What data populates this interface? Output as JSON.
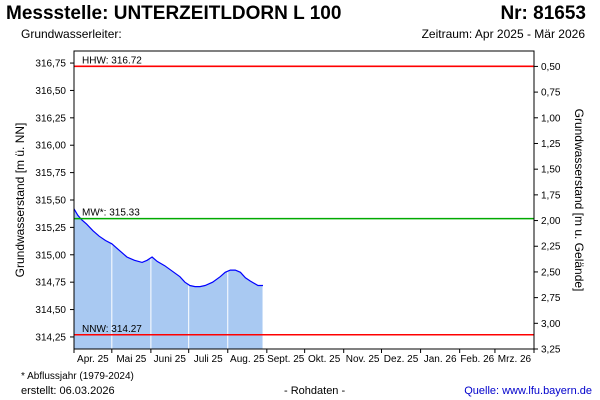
{
  "header": {
    "title": "Messstelle: UNTERZEITLDORN L 100",
    "number": "Nr: 81653",
    "aquifer": "Grundwasserleiter:",
    "period": "Zeitraum: Apr 2025 - Mär 2026"
  },
  "footer": {
    "footnote": "* Abflussjahr (1979-2024)",
    "created": "erstellt:  06.03.2026",
    "raw": "- Rohdaten -",
    "source": "Quelle: www.lfu.bayern.de"
  },
  "chart_data": {
    "type": "area",
    "ylabel": "Grundwasserstand [m ü. NN]",
    "y2label": "Grundwasserstand [m u. Gelände]",
    "ylim": [
      314.14,
      316.86
    ],
    "y2lim": [
      3.25,
      0.35
    ],
    "yticks": [
      "316,75",
      "316,50",
      "316,25",
      "316,00",
      "315,75",
      "315,50",
      "315,25",
      "315,00",
      "314,75",
      "314,50",
      "314,25"
    ],
    "y2ticks": [
      "0,50",
      "0,75",
      "1,00",
      "1,25",
      "1,50",
      "1,75",
      "2,00",
      "2,25",
      "2,50",
      "2,75",
      "3,00",
      "3,25"
    ],
    "xrange_days": [
      0,
      365
    ],
    "month_boundaries_days": [
      0,
      30,
      61,
      91,
      122,
      153,
      183,
      214,
      244,
      275,
      306,
      334,
      365
    ],
    "xticks": [
      {
        "day": 15,
        "label": "Apr. 25"
      },
      {
        "day": 45.5,
        "label": "Mai 25"
      },
      {
        "day": 76,
        "label": "Juni 25"
      },
      {
        "day": 106.5,
        "label": "Juli 25"
      },
      {
        "day": 137.5,
        "label": "Aug. 25"
      },
      {
        "day": 168,
        "label": "Sept. 25"
      },
      {
        "day": 198.5,
        "label": "Okt. 25"
      },
      {
        "day": 229,
        "label": "Nov. 25"
      },
      {
        "day": 259.5,
        "label": "Dez. 25"
      },
      {
        "day": 290.5,
        "label": "Jan. 26"
      },
      {
        "day": 320,
        "label": "Feb. 26"
      },
      {
        "day": 349.5,
        "label": "Mrz. 26"
      }
    ],
    "reference_lines": [
      {
        "label": "HHW: 316.72",
        "value": 316.72,
        "color": "#ff0000"
      },
      {
        "label": "MW*: 315.33",
        "value": 315.33,
        "color": "#00aa00"
      },
      {
        "label": "NNW: 314.27",
        "value": 314.27,
        "color": "#ff0000"
      }
    ],
    "series": [
      {
        "line_color": "#0000ff",
        "fill_color": "#a9c9f2",
        "x": [
          0,
          3,
          6,
          10,
          15,
          20,
          25,
          30,
          36,
          42,
          48,
          54,
          58,
          62,
          66,
          72,
          78,
          84,
          88,
          92,
          96,
          100,
          104,
          110,
          116,
          120,
          124,
          128,
          132,
          136,
          140,
          146,
          150
        ],
        "y": [
          315.42,
          315.36,
          315.32,
          315.28,
          315.22,
          315.17,
          315.13,
          315.1,
          315.04,
          314.98,
          314.95,
          314.93,
          314.95,
          314.98,
          314.94,
          314.9,
          314.85,
          314.8,
          314.75,
          314.72,
          314.71,
          314.71,
          314.72,
          314.75,
          314.8,
          314.84,
          314.86,
          314.86,
          314.84,
          314.79,
          314.76,
          314.72,
          314.72
        ]
      }
    ],
    "grid": false,
    "legend": "none"
  }
}
